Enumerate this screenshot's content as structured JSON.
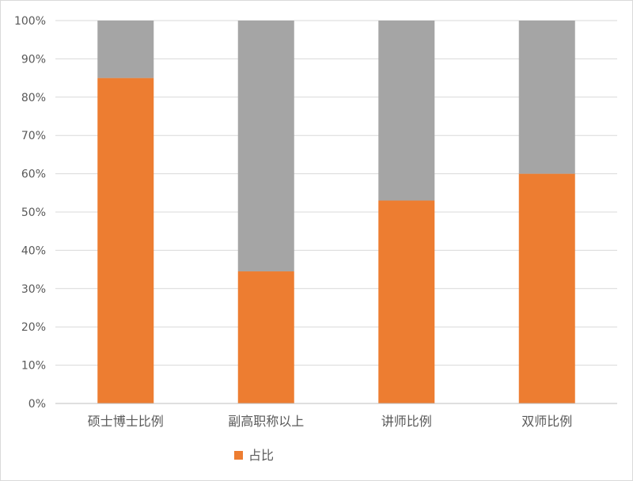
{
  "chart_data": {
    "type": "bar",
    "stacked": true,
    "categories": [
      "硕士博士比例",
      "副高职称以上",
      "讲师比例",
      "双师比例"
    ],
    "series": [
      {
        "name": "占比",
        "values": [
          0.85,
          0.345,
          0.53,
          0.6
        ],
        "color": "#ED7D31",
        "in_legend": true
      },
      {
        "name": "",
        "values": [
          0.15,
          0.655,
          0.47,
          0.4
        ],
        "color": "#A5A5A5",
        "in_legend": false
      }
    ],
    "yticks": [
      "0%",
      "10%",
      "20%",
      "30%",
      "40%",
      "50%",
      "60%",
      "70%",
      "80%",
      "90%",
      "100%"
    ],
    "ylim": [
      0,
      1
    ],
    "grid": true,
    "legend_position": "bottom-left",
    "title": "",
    "xlabel": "",
    "ylabel": ""
  }
}
